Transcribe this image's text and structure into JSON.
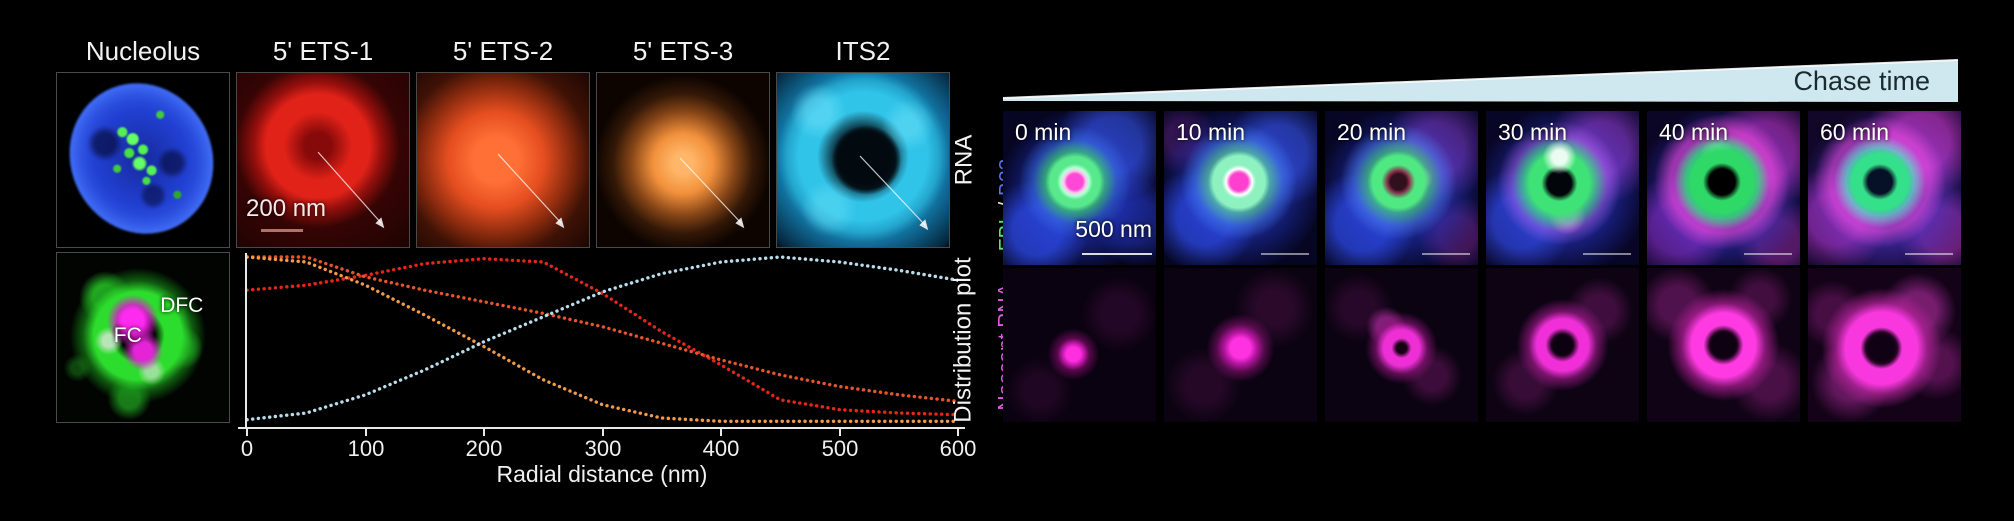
{
  "colors": {
    "fbl_green": "#52e87e",
    "b23_blue": "#5a6cf8",
    "nascent_magenta": "#df5ae4",
    "wedge_blue": "#cfe8f0",
    "chase_text": "#1a2b30",
    "scalebar_red": "#b0736a",
    "ets1_red": "#e62619",
    "ets2_vermilion": "#e8542c",
    "ets3_orange": "#f29a48",
    "its2_cyan": "#35c3e8"
  },
  "left": {
    "row1_labels": [
      "Nucleolus",
      "5' ETS-1",
      "5' ETS-2",
      "5' ETS-3",
      "ITS2"
    ],
    "rna_label": "RNA",
    "scalebar_200": "200 nm",
    "dfc_label": "DFC",
    "fc_label": "FC",
    "dist_label": "Distribution plot"
  },
  "chart_data": {
    "type": "line",
    "style": "dotted",
    "title": "",
    "xlabel": "Radial distance (nm)",
    "ylabel": "Distribution plot",
    "xlim": [
      0,
      600
    ],
    "xticks": [
      0,
      100,
      200,
      300,
      400,
      500,
      600
    ],
    "grid": false,
    "legend": "none",
    "x": [
      0,
      50,
      100,
      150,
      200,
      250,
      300,
      350,
      400,
      450,
      500,
      550,
      600
    ],
    "series": [
      {
        "name": "5' ETS-1",
        "color": "#e62619",
        "values": [
          0.8,
          0.83,
          0.89,
          0.96,
          0.99,
          0.97,
          0.78,
          0.55,
          0.35,
          0.14,
          0.08,
          0.06,
          0.05
        ]
      },
      {
        "name": "5' ETS-2",
        "color": "#e8542c",
        "values": [
          1.0,
          1.0,
          0.88,
          0.8,
          0.73,
          0.66,
          0.58,
          0.48,
          0.38,
          0.29,
          0.22,
          0.17,
          0.13
        ]
      },
      {
        "name": "5' ETS-3",
        "color": "#f29a48",
        "values": [
          1.0,
          0.97,
          0.83,
          0.65,
          0.46,
          0.26,
          0.11,
          0.03,
          0.01,
          0.01,
          0.01,
          0.01,
          0.01
        ]
      },
      {
        "name": "ITS2",
        "color": "#b9dcec",
        "values": [
          0.02,
          0.06,
          0.17,
          0.32,
          0.49,
          0.64,
          0.79,
          0.9,
          0.97,
          1.0,
          0.97,
          0.92,
          0.86
        ]
      }
    ]
  },
  "right": {
    "chase_label": "Chase time",
    "timepoints": [
      "0 min",
      "10 min",
      "20 min",
      "30 min",
      "40 min",
      "60 min"
    ],
    "row1_channel": {
      "part1": "FBL",
      "sep": " / ",
      "part2": "B23"
    },
    "row2_channel": "Nascent RNA",
    "scalebar_500": "500 nm"
  }
}
